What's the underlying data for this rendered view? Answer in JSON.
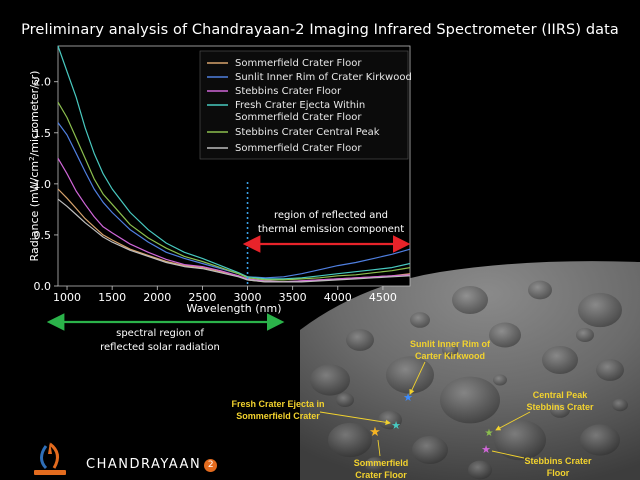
{
  "chart_data": {
    "type": "line",
    "title": "Preliminary analysis of Chandrayaan-2 Imaging Infrared Spectrometer (IIRS) data",
    "xlabel": "Wavelength (nm)",
    "ylabel_pre": "Radiance (mW/cm",
    "ylabel_sup": "2",
    "ylabel_post": "/micrometer/sr)",
    "xlim": [
      900,
      4800
    ],
    "ylim": [
      0,
      2.35
    ],
    "xticks": [
      1000,
      1500,
      2000,
      2500,
      3000,
      3500,
      4000,
      4500
    ],
    "yticks": [
      0.0,
      0.5,
      1.0,
      1.5,
      2.0
    ],
    "legend_position": "top-right",
    "series": [
      {
        "name": "Sommerfield Crater Floor",
        "color": "#d7a36d",
        "x": [
          900,
          1000,
          1100,
          1200,
          1300,
          1400,
          1500,
          1700,
          1900,
          2100,
          2300,
          2500,
          2700,
          2900,
          3000,
          3200,
          3400,
          3600,
          3800,
          4000,
          4200,
          4400,
          4600,
          4800
        ],
        "y": [
          0.95,
          0.86,
          0.76,
          0.66,
          0.58,
          0.5,
          0.45,
          0.36,
          0.3,
          0.24,
          0.2,
          0.18,
          0.14,
          0.1,
          0.06,
          0.04,
          0.04,
          0.05,
          0.06,
          0.07,
          0.08,
          0.09,
          0.1,
          0.12
        ]
      },
      {
        "name": "Sunlit Inner Rim of Crater Kirkwood",
        "color": "#4f7fe0",
        "x": [
          900,
          1000,
          1100,
          1200,
          1300,
          1400,
          1500,
          1700,
          1900,
          2100,
          2300,
          2500,
          2700,
          2900,
          3000,
          3200,
          3400,
          3600,
          3800,
          4000,
          4200,
          4400,
          4600,
          4800
        ],
        "y": [
          1.6,
          1.48,
          1.3,
          1.12,
          0.95,
          0.82,
          0.72,
          0.55,
          0.43,
          0.33,
          0.27,
          0.22,
          0.17,
          0.12,
          0.09,
          0.08,
          0.09,
          0.12,
          0.16,
          0.2,
          0.23,
          0.27,
          0.31,
          0.36
        ]
      },
      {
        "name": "Stebbins Crater Floor",
        "color": "#d066d8",
        "x": [
          900,
          1000,
          1100,
          1200,
          1300,
          1400,
          1500,
          1700,
          1900,
          2100,
          2300,
          2500,
          2700,
          2900,
          3000,
          3200,
          3400,
          3600,
          3800,
          4000,
          4200,
          4400,
          4600,
          4800
        ],
        "y": [
          1.25,
          1.1,
          0.93,
          0.8,
          0.68,
          0.58,
          0.52,
          0.41,
          0.33,
          0.26,
          0.21,
          0.19,
          0.15,
          0.1,
          0.07,
          0.05,
          0.04,
          0.05,
          0.06,
          0.07,
          0.08,
          0.09,
          0.1,
          0.11
        ]
      }
    ],
    "series_more": [
      {
        "name": "Fresh Crater Ejecta Within",
        "name2": "Sommerfield Crater Floor",
        "color": "#48c9c0",
        "x": [
          900,
          1000,
          1100,
          1200,
          1300,
          1400,
          1500,
          1700,
          1900,
          2100,
          2300,
          2500,
          2700,
          2900,
          3000,
          3200,
          3400,
          3600,
          3800,
          4000,
          4200,
          4400,
          4600,
          4800
        ],
        "y": [
          2.35,
          2.1,
          1.85,
          1.55,
          1.3,
          1.1,
          0.95,
          0.72,
          0.55,
          0.42,
          0.33,
          0.27,
          0.2,
          0.13,
          0.09,
          0.07,
          0.07,
          0.08,
          0.1,
          0.12,
          0.14,
          0.16,
          0.18,
          0.22
        ]
      },
      {
        "name": "Stebbins Crater Central Peak",
        "name2": "",
        "color": "#8cbf4e",
        "x": [
          900,
          1000,
          1100,
          1200,
          1300,
          1400,
          1500,
          1700,
          1900,
          2100,
          2300,
          2500,
          2700,
          2900,
          3000,
          3200,
          3400,
          3600,
          3800,
          4000,
          4200,
          4400,
          4600,
          4800
        ],
        "y": [
          1.8,
          1.65,
          1.45,
          1.25,
          1.05,
          0.9,
          0.8,
          0.6,
          0.47,
          0.37,
          0.29,
          0.24,
          0.18,
          0.12,
          0.08,
          0.06,
          0.06,
          0.07,
          0.08,
          0.1,
          0.11,
          0.13,
          0.15,
          0.18
        ]
      },
      {
        "name": "Sommerfield Crater Floor",
        "name2": "",
        "color": "#bdbdbd",
        "x": [
          900,
          1000,
          1100,
          1200,
          1300,
          1400,
          1500,
          1700,
          1900,
          2100,
          2300,
          2500,
          2700,
          2900,
          3000,
          3200,
          3400,
          3600,
          3800,
          4000,
          4200,
          4400,
          4600,
          4800
        ],
        "y": [
          0.85,
          0.78,
          0.7,
          0.62,
          0.55,
          0.48,
          0.43,
          0.35,
          0.29,
          0.23,
          0.19,
          0.17,
          0.13,
          0.09,
          0.06,
          0.04,
          0.04,
          0.04,
          0.05,
          0.06,
          0.07,
          0.08,
          0.09,
          0.1
        ]
      }
    ],
    "divider_x": 3000,
    "thermal_label_1": "region of reflected and",
    "thermal_label_2": "thermal emission component",
    "solar_label_1": "spectral region of",
    "solar_label_2": "reflected solar radiation"
  },
  "moon_labels": {
    "kirkwood_1": "Sunlit Inner Rim of",
    "kirkwood_2": "Carter Kirkwood",
    "ejecta_1": "Fresh Crater Ejecta in",
    "ejecta_2": "Sommerfield Crater",
    "central_1": "Central Peak",
    "central_2": "Stebbins Crater",
    "stebfloor_1": "Stebbins Crater",
    "stebfloor_2": "Floor",
    "somfloor_1": "Sommerfield",
    "somfloor_2": "Crater Floor"
  },
  "branding": {
    "mission": "CHANDRAYAAN",
    "mission_number": "2"
  },
  "colors": {
    "thermal_arrow": "#e8232a",
    "solar_arrow": "#2bb34a",
    "label_yellow": "#f2d22e",
    "divider": "#3aa0e6"
  }
}
